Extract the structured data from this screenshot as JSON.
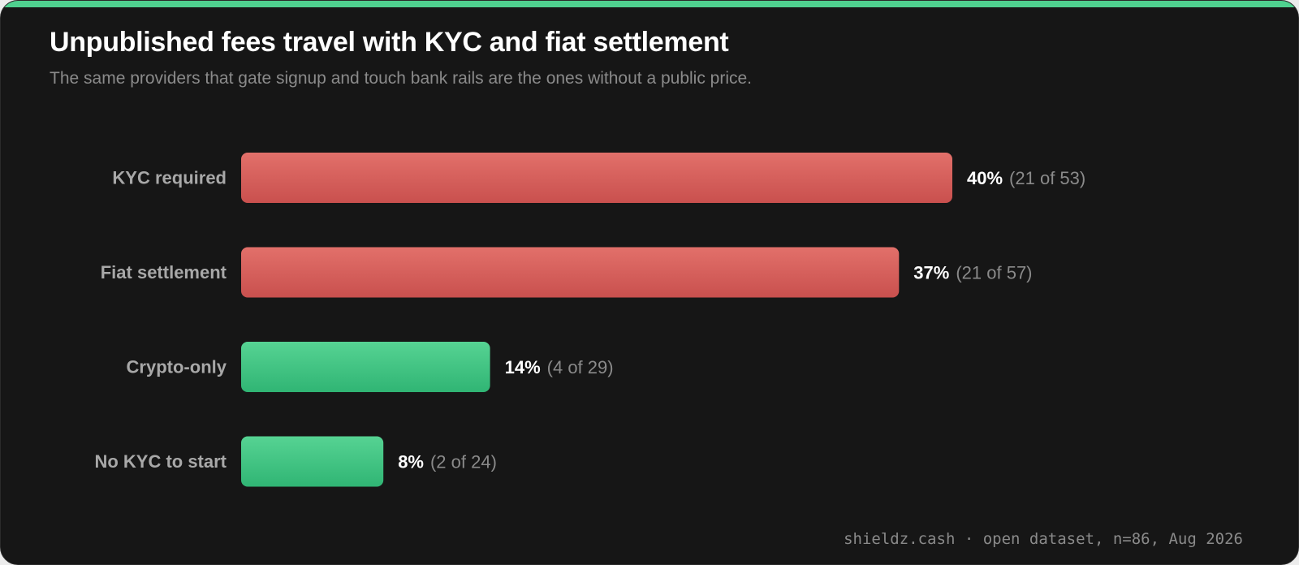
{
  "header": {
    "title": "Unpublished fees travel with KYC and fiat settlement",
    "subtitle": "The same providers that gate signup and touch bank rails are the ones without a public price."
  },
  "footer": {
    "source": "shieldz.cash · open dataset, n=86, Aug 2026"
  },
  "colors": {
    "accent": "#4fd18f",
    "red_bar_top": "#e2706a",
    "red_bar_bottom": "#c9504e",
    "green_bar_top": "#56d393",
    "green_bar_bottom": "#30b574",
    "background": "#161616"
  },
  "chart_data": {
    "type": "bar",
    "orientation": "horizontal",
    "title": "Unpublished fees travel with KYC and fiat settlement",
    "subtitle": "The same providers that gate signup and touch bank rails are the ones without a public price.",
    "categories": [
      "KYC required",
      "Fiat settlement",
      "Crypto-only",
      "No KYC to start"
    ],
    "values": [
      40,
      37,
      14,
      8
    ],
    "value_labels": [
      "40%",
      "37%",
      "14%",
      "8%"
    ],
    "count_labels": [
      "(21 of 53)",
      "(21 of 57)",
      "(4 of 29)",
      "(2 of 24)"
    ],
    "bar_colors": [
      "red",
      "red",
      "green",
      "green"
    ],
    "unit": "%",
    "grid": false,
    "legend": "none"
  }
}
